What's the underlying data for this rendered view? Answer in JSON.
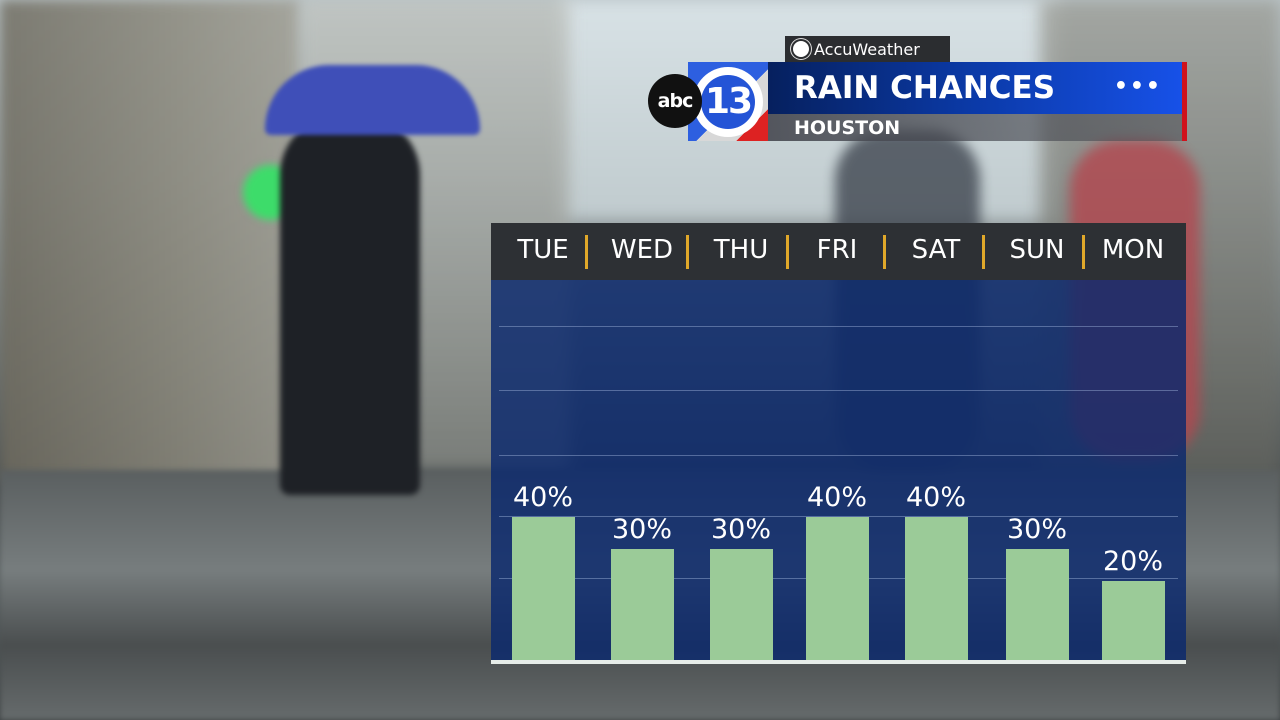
{
  "header": {
    "sponsor": "AccuWeather",
    "network_logo": "abc",
    "channel_logo": "13",
    "title": "RAIN CHANCES",
    "location": "HOUSTON",
    "menu_icon": "more-dots-icon"
  },
  "colors": {
    "bar": "#9bcb98",
    "plot_bg": "#0a286e",
    "separator": "#e0a82a",
    "accent_red": "#d0121c"
  },
  "chart_data": {
    "type": "bar",
    "categories": [
      "TUE",
      "WED",
      "THU",
      "FRI",
      "SAT",
      "SUN",
      "MON"
    ],
    "values": [
      40,
      30,
      30,
      40,
      40,
      30,
      20
    ],
    "labels": [
      "40%",
      "30%",
      "30%",
      "40%",
      "40%",
      "30%",
      "20%"
    ],
    "title": "RAIN CHANCES",
    "xlabel": "",
    "ylabel": "",
    "unit": "%",
    "grid": true,
    "legend": "none"
  }
}
